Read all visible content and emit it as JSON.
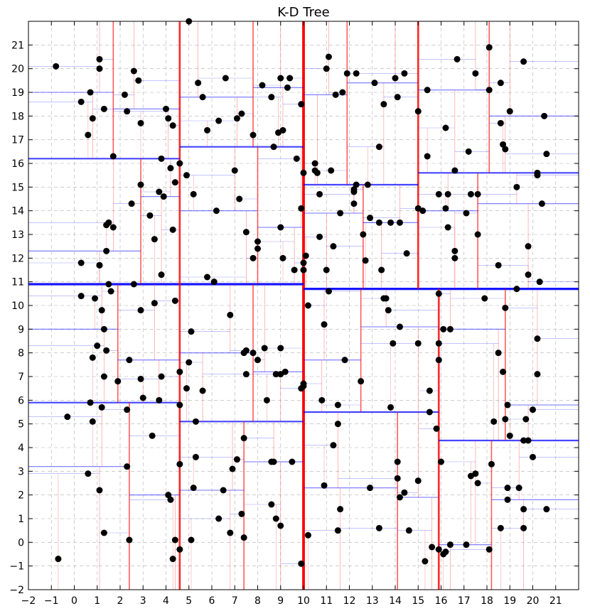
{
  "chart_data": {
    "type": "scatter",
    "title": "K-D Tree",
    "xlabel": "",
    "ylabel": "",
    "xlim": [
      -2,
      22
    ],
    "ylim": [
      -2,
      22
    ],
    "grid": true,
    "x_ticks": [
      "−2",
      "−1",
      "0",
      "1",
      "2",
      "3",
      "4",
      "5",
      "6",
      "7",
      "8",
      "9",
      "10",
      "11",
      "12",
      "13",
      "14",
      "15",
      "16",
      "17",
      "18",
      "19",
      "20",
      "21"
    ],
    "y_ticks": [
      "−2",
      "−1",
      "0",
      "1",
      "2",
      "3",
      "4",
      "5",
      "6",
      "7",
      "8",
      "9",
      "10",
      "11",
      "12",
      "13",
      "14",
      "15",
      "16",
      "17",
      "18",
      "19",
      "20",
      "21"
    ],
    "point_color": "#000000",
    "vertical_split_color": "#ff0000",
    "horizontal_split_color": "#0000ff",
    "points": [
      [
        -0.8,
        20.1
      ],
      [
        0.3,
        18.6
      ],
      [
        0.7,
        19.0
      ],
      [
        0.8,
        17.9
      ],
      [
        1.1,
        20.4
      ],
      [
        1.1,
        20.0
      ],
      [
        1.3,
        18.3
      ],
      [
        2.2,
        18.9
      ],
      [
        2.3,
        18.2
      ],
      [
        2.6,
        19.9
      ],
      [
        2.8,
        19.5
      ],
      [
        2.9,
        17.7
      ],
      [
        4.0,
        18.3
      ],
      [
        4.1,
        17.9
      ],
      [
        4.3,
        17.6
      ],
      [
        0.6,
        17.2
      ],
      [
        1.7,
        16.3
      ],
      [
        2.5,
        14.3
      ],
      [
        2.9,
        15.1
      ],
      [
        3.8,
        16.2
      ],
      [
        4.2,
        15.8
      ],
      [
        4.4,
        15.2
      ],
      [
        4.6,
        16.0
      ],
      [
        4.9,
        15.5
      ],
      [
        3.7,
        14.8
      ],
      [
        3.9,
        14.6
      ],
      [
        1.5,
        13.5
      ],
      [
        1.4,
        13.4
      ],
      [
        1.7,
        13.3
      ],
      [
        3.3,
        13.8
      ],
      [
        3.5,
        12.8
      ],
      [
        4.3,
        13.2
      ],
      [
        0.3,
        11.8
      ],
      [
        1.1,
        11.7
      ],
      [
        1.4,
        12.3
      ],
      [
        3.8,
        11.3
      ],
      [
        5.0,
        22.0
      ],
      [
        5.4,
        19.4
      ],
      [
        5.6,
        18.8
      ],
      [
        5.8,
        17.4
      ],
      [
        6.6,
        19.6
      ],
      [
        6.3,
        17.8
      ],
      [
        7.1,
        17.9
      ],
      [
        7.3,
        18.1
      ],
      [
        7.8,
        17.2
      ],
      [
        8.2,
        19.3
      ],
      [
        8.6,
        18.8
      ],
      [
        9.0,
        19.6
      ],
      [
        9.3,
        19.2
      ],
      [
        9.4,
        19.6
      ],
      [
        8.9,
        17.3
      ],
      [
        9.1,
        17.4
      ],
      [
        9.9,
        18.5
      ],
      [
        8.7,
        16.7
      ],
      [
        9.7,
        16.2
      ],
      [
        5.2,
        14.7
      ],
      [
        6.2,
        14.0
      ],
      [
        7.0,
        15.7
      ],
      [
        7.2,
        14.5
      ],
      [
        7.5,
        13.1
      ],
      [
        8.0,
        12.7
      ],
      [
        8.0,
        12.4
      ],
      [
        7.8,
        12.0
      ],
      [
        9.0,
        13.3
      ],
      [
        9.1,
        12.0
      ],
      [
        9.6,
        11.5
      ],
      [
        9.9,
        14.1
      ],
      [
        10.0,
        15.6
      ],
      [
        10.0,
        11.8
      ],
      [
        10.0,
        11.5
      ],
      [
        10.1,
        12.1
      ],
      [
        5.8,
        11.2
      ],
      [
        6.1,
        11.0
      ],
      [
        10.5,
        16.0
      ],
      [
        10.5,
        15.7
      ],
      [
        10.6,
        15.6
      ],
      [
        10.7,
        14.7
      ],
      [
        11.1,
        20.5
      ],
      [
        11.0,
        20.0
      ],
      [
        11.4,
        18.9
      ],
      [
        11.7,
        19.0
      ],
      [
        11.9,
        19.8
      ],
      [
        12.3,
        19.8
      ],
      [
        13.1,
        19.4
      ],
      [
        13.5,
        18.5
      ],
      [
        14.0,
        19.6
      ],
      [
        14.1,
        18.8
      ],
      [
        14.4,
        19.8
      ],
      [
        15.0,
        18.2
      ],
      [
        15.4,
        19.1
      ],
      [
        15.4,
        16.3
      ],
      [
        11.2,
        15.7
      ],
      [
        12.2,
        14.8
      ],
      [
        12.2,
        14.9
      ],
      [
        12.2,
        14.3
      ],
      [
        12.3,
        15.1
      ],
      [
        12.8,
        15.1
      ],
      [
        11.6,
        13.9
      ],
      [
        12.6,
        13.0
      ],
      [
        12.9,
        13.7
      ],
      [
        13.3,
        16.7
      ],
      [
        13.3,
        13.5
      ],
      [
        13.4,
        11.5
      ],
      [
        13.8,
        13.5
      ],
      [
        14.2,
        13.5
      ],
      [
        14.5,
        12.2
      ],
      [
        15.0,
        14.1
      ],
      [
        15.2,
        14.0
      ],
      [
        10.7,
        12.9
      ],
      [
        11.0,
        11.5
      ],
      [
        11.3,
        12.5
      ],
      [
        12.7,
        11.9
      ],
      [
        16.7,
        20.4
      ],
      [
        17.5,
        19.8
      ],
      [
        17.2,
        16.5
      ],
      [
        16.2,
        17.5
      ],
      [
        16.6,
        15.7
      ],
      [
        15.9,
        14.7
      ],
      [
        16.3,
        14.7
      ],
      [
        16.2,
        14.1
      ],
      [
        17.1,
        13.9
      ],
      [
        17.3,
        14.7
      ],
      [
        17.6,
        14.7
      ],
      [
        17.6,
        13.0
      ],
      [
        16.3,
        13.3
      ],
      [
        16.6,
        12.3
      ],
      [
        16.6,
        12.0
      ],
      [
        18.1,
        19.1
      ],
      [
        18.1,
        20.9
      ],
      [
        18.6,
        19.4
      ],
      [
        18.6,
        17.7
      ],
      [
        18.7,
        16.8
      ],
      [
        18.8,
        16.6
      ],
      [
        19.0,
        18.2
      ],
      [
        19.3,
        15.0
      ],
      [
        19.6,
        20.3
      ],
      [
        19.8,
        12.5
      ],
      [
        19.8,
        11.3
      ],
      [
        20.2,
        15.5
      ],
      [
        20.2,
        15.6
      ],
      [
        20.4,
        14.3
      ],
      [
        20.5,
        18.0
      ],
      [
        20.6,
        16.4
      ],
      [
        20.3,
        11.0
      ],
      [
        18.5,
        11.7
      ],
      [
        19.3,
        10.7
      ],
      [
        0.3,
        10.4
      ],
      [
        0.9,
        10.3
      ],
      [
        1.1,
        11.7
      ],
      [
        1.2,
        9.8
      ],
      [
        1.3,
        9.0
      ],
      [
        1.4,
        8.1
      ],
      [
        1.5,
        10.9
      ],
      [
        1.6,
        10.6
      ],
      [
        1.0,
        8.3
      ],
      [
        0.8,
        7.8
      ],
      [
        1.3,
        7.0
      ],
      [
        1.9,
        6.8
      ],
      [
        2.4,
        7.7
      ],
      [
        2.9,
        6.9
      ],
      [
        2.9,
        9.8
      ],
      [
        2.6,
        10.9
      ],
      [
        3.0,
        6.1
      ],
      [
        3.5,
        10.1
      ],
      [
        3.8,
        7.0
      ],
      [
        4.4,
        10.2
      ],
      [
        4.6,
        7.2
      ],
      [
        4.9,
        6.5
      ],
      [
        5.0,
        7.6
      ],
      [
        5.1,
        8.9
      ],
      [
        5.3,
        5.1
      ],
      [
        5.6,
        6.4
      ],
      [
        6.8,
        9.6
      ],
      [
        7.4,
        8.0
      ],
      [
        7.5,
        8.1
      ],
      [
        7.5,
        7.1
      ],
      [
        7.8,
        8.0
      ],
      [
        8.3,
        8.2
      ],
      [
        8.0,
        7.7
      ],
      [
        8.4,
        6.0
      ],
      [
        8.8,
        7.1
      ],
      [
        9.0,
        8.2
      ],
      [
        9.2,
        7.2
      ],
      [
        9.0,
        7.1
      ],
      [
        9.9,
        6.5
      ],
      [
        10.0,
        6.7
      ],
      [
        10.0,
        6.6
      ],
      [
        -0.3,
        5.3
      ],
      [
        0.7,
        5.9
      ],
      [
        0.8,
        5.1
      ],
      [
        1.2,
        5.7
      ],
      [
        2.3,
        5.6
      ],
      [
        3.4,
        4.5
      ],
      [
        3.7,
        6.0
      ],
      [
        4.6,
        5.8
      ],
      [
        0.6,
        2.9
      ],
      [
        1.1,
        2.2
      ],
      [
        1.3,
        0.4
      ],
      [
        2.3,
        3.2
      ],
      [
        2.4,
        0.1
      ],
      [
        4.1,
        2.0
      ],
      [
        4.2,
        1.8
      ],
      [
        4.4,
        0.1
      ],
      [
        4.3,
        -0.7
      ],
      [
        4.6,
        -0.3
      ],
      [
        4.6,
        3.3
      ],
      [
        5.1,
        0.1
      ],
      [
        5.2,
        2.3
      ],
      [
        5.3,
        3.6
      ],
      [
        6.3,
        1.0
      ],
      [
        6.5,
        2.2
      ],
      [
        6.9,
        3.1
      ],
      [
        7.1,
        3.5
      ],
      [
        6.8,
        0.4
      ],
      [
        7.4,
        4.4
      ],
      [
        7.3,
        1.2
      ],
      [
        7.4,
        0.2
      ],
      [
        8.6,
        3.4
      ],
      [
        8.7,
        3.4
      ],
      [
        8.6,
        1.6
      ],
      [
        8.8,
        1.0
      ],
      [
        9.0,
        0.7
      ],
      [
        9.5,
        3.4
      ],
      [
        9.9,
        -0.9
      ],
      [
        -0.7,
        -0.7
      ],
      [
        10.2,
        10.0
      ],
      [
        11.1,
        10.6
      ],
      [
        10.9,
        9.2
      ],
      [
        11.8,
        7.7
      ],
      [
        12.5,
        6.8
      ],
      [
        10.8,
        6.0
      ],
      [
        11.5,
        5.8
      ],
      [
        11.3,
        4.1
      ],
      [
        11.5,
        5.0
      ],
      [
        10.9,
        2.4
      ],
      [
        11.6,
        1.4
      ],
      [
        10.2,
        0.3
      ],
      [
        11.5,
        0.5
      ],
      [
        12.9,
        2.3
      ],
      [
        13.3,
        0.6
      ],
      [
        13.5,
        10.3
      ],
      [
        13.6,
        10.3
      ],
      [
        13.7,
        9.8
      ],
      [
        13.9,
        8.4
      ],
      [
        14.2,
        9.1
      ],
      [
        15.0,
        8.4
      ],
      [
        13.8,
        5.7
      ],
      [
        14.1,
        3.4
      ],
      [
        14.1,
        2.7
      ],
      [
        14.2,
        1.9
      ],
      [
        14.4,
        2.1
      ],
      [
        14.6,
        0.5
      ],
      [
        15.0,
        2.6
      ],
      [
        15.3,
        -0.8
      ],
      [
        15.5,
        6.4
      ],
      [
        15.5,
        5.5
      ],
      [
        15.9,
        10.5
      ],
      [
        15.9,
        7.7
      ],
      [
        15.8,
        4.8
      ],
      [
        15.9,
        8.4
      ],
      [
        16.1,
        9.0
      ],
      [
        16.4,
        9.0
      ],
      [
        16.0,
        3.4
      ],
      [
        15.6,
        -0.2
      ],
      [
        15.9,
        -0.3
      ],
      [
        16.1,
        -0.5
      ],
      [
        16.2,
        -0.4
      ],
      [
        16.4,
        -0.1
      ],
      [
        17.1,
        -0.1
      ],
      [
        17.3,
        2.8
      ],
      [
        17.5,
        2.9
      ],
      [
        17.6,
        2.5
      ],
      [
        17.9,
        10.3
      ],
      [
        18.2,
        3.3
      ],
      [
        18.5,
        8.0
      ],
      [
        18.6,
        0.6
      ],
      [
        18.8,
        9.9
      ],
      [
        18.8,
        5.2
      ],
      [
        18.9,
        5.8
      ],
      [
        18.7,
        7.2
      ],
      [
        18.9,
        2.3
      ],
      [
        18.9,
        1.8
      ],
      [
        19.0,
        4.5
      ],
      [
        19.4,
        2.3
      ],
      [
        19.6,
        4.3
      ],
      [
        19.7,
        5.2
      ],
      [
        19.8,
        4.3
      ],
      [
        20.0,
        5.6
      ],
      [
        20.0,
        3.6
      ],
      [
        20.2,
        8.6
      ],
      [
        20.2,
        7.1
      ],
      [
        19.6,
        1.4
      ],
      [
        19.6,
        0.6
      ],
      [
        20.6,
        1.4
      ],
      [
        18.3,
        5.1
      ],
      [
        18.1,
        -0.3
      ]
    ]
  }
}
